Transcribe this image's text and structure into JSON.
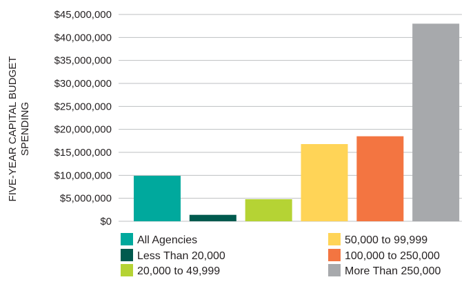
{
  "chart_data": {
    "type": "bar",
    "ylabel_lines": [
      "FIVE-YEAR CAPITAL BUDGET",
      "SPENDING"
    ],
    "ylim": [
      0,
      45000000
    ],
    "ytick_values": [
      0,
      5000000,
      10000000,
      15000000,
      20000000,
      25000000,
      30000000,
      35000000,
      40000000,
      45000000
    ],
    "ytick_labels": [
      "$0",
      "$5,000,000",
      "$10,000,000",
      "$15,000,000",
      "$20,000,000",
      "$25,000,000",
      "$30,000,000",
      "$35,000,000",
      "$40,000,000",
      "$45,000,000"
    ],
    "grid": "horizontal",
    "legend_position": "bottom",
    "categories": [
      "All Agencies",
      "Less Than 20,000",
      "20,000 to 49,999",
      "50,000 to 99,999",
      "100,000 to 250,000",
      "More Than 250,000"
    ],
    "values": [
      9900000,
      1400000,
      4800000,
      16800000,
      18500000,
      43000000
    ],
    "colors": [
      "#00a99d",
      "#005a4e",
      "#b5d334",
      "#ffd457",
      "#f37541",
      "#a7a9ac"
    ]
  }
}
